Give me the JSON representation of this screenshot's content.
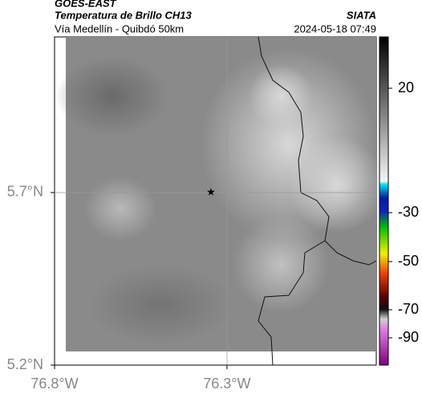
{
  "header": {
    "title": "GOES-EAST",
    "subtitle": "Temperatura de Brillo CH13",
    "right_title": "SIATA",
    "route": "Vía Medellín - Quibdó 50km",
    "timestamp": "2024-05-18 07:49"
  },
  "map": {
    "xlim": [
      -76.8,
      -75.867
    ],
    "ylim": [
      5.2,
      6.151
    ],
    "xticks": [
      {
        "value": -76.8,
        "label": "76.8°W"
      },
      {
        "value": -76.3,
        "label": "76.3°W"
      }
    ],
    "yticks": [
      {
        "value": 5.2,
        "label": "5.2°N"
      },
      {
        "value": 5.7,
        "label": "5.7°N"
      }
    ]
  },
  "colorbar": {
    "ticks": [
      20,
      -30,
      -50,
      -70,
      -90
    ]
  }
}
